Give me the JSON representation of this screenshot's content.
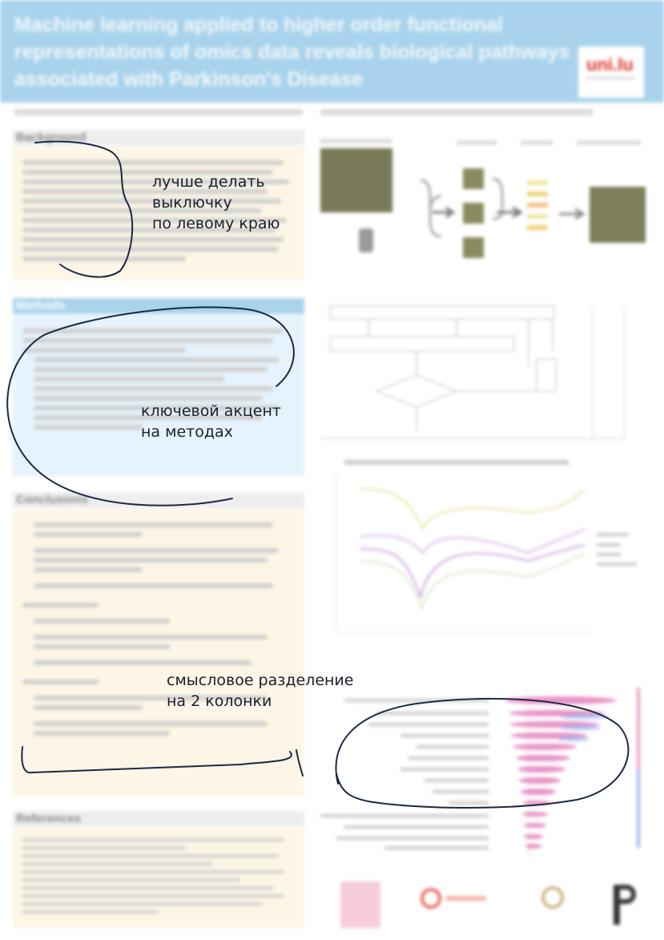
{
  "poster": {
    "title": "Machine learning applied to higher order functional representations of omics data reveals biological pathways associated with Parkinson's Disease",
    "sections": {
      "background": "Background",
      "methods": "Methods",
      "conclusions": "Conclusions",
      "references": "References"
    },
    "colors": {
      "header": "#a9d3ec",
      "background_section": "#fdf6e6",
      "methods_section": "#e6f3fc",
      "conclusions_section": "#fdf6e6",
      "ink": "#1a2a44"
    }
  },
  "annotations": {
    "left_align": {
      "line1": "лучше делать",
      "line2": "выключку",
      "line3": "по левому краю"
    },
    "methods_focus": {
      "line1": "ключевой акцент",
      "line2": "на методах"
    },
    "two_columns": {
      "line1": "смысловое разделение",
      "line2": "на 2 колонки"
    }
  }
}
